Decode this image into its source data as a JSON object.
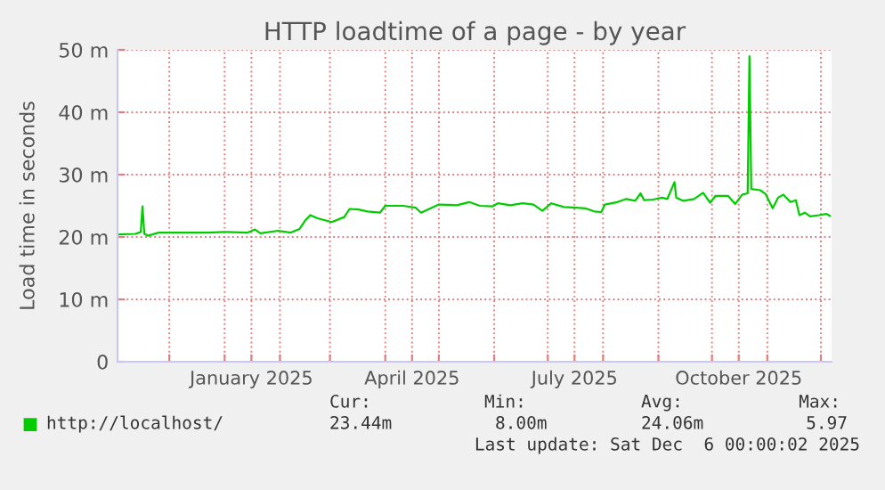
{
  "chart_data": {
    "type": "line",
    "title": "HTTP loadtime of a page - by year",
    "ylabel": "Load time in seconds",
    "x": [
      "2024-11-02",
      "2024-11-12",
      "2024-11-15",
      "2024-11-16",
      "2024-11-17",
      "2024-11-19",
      "2024-11-25",
      "2024-12-05",
      "2024-12-22",
      "2025-01-01",
      "2025-01-14",
      "2025-01-18",
      "2025-01-21",
      "2025-01-31",
      "2025-02-07",
      "2025-02-12",
      "2025-02-15",
      "2025-02-18",
      "2025-02-22",
      "2025-03-02",
      "2025-03-09",
      "2025-03-12",
      "2025-03-17",
      "2025-03-22",
      "2025-03-29",
      "2025-04-01",
      "2025-04-11",
      "2025-04-18",
      "2025-04-21",
      "2025-04-24",
      "2025-05-01",
      "2025-05-11",
      "2025-05-18",
      "2025-05-24",
      "2025-05-31",
      "2025-06-03",
      "2025-06-10",
      "2025-06-17",
      "2025-06-23",
      "2025-06-28",
      "2025-07-03",
      "2025-07-10",
      "2025-07-17",
      "2025-07-22",
      "2025-07-27",
      "2025-07-31",
      "2025-08-02",
      "2025-08-09",
      "2025-08-14",
      "2025-08-19",
      "2025-08-22",
      "2025-08-24",
      "2025-08-29",
      "2025-09-03",
      "2025-09-06",
      "2025-09-10",
      "2025-09-11",
      "2025-09-15",
      "2025-09-21",
      "2025-09-26",
      "2025-09-30",
      "2025-10-03",
      "2025-10-10",
      "2025-10-14",
      "2025-10-18",
      "2025-10-21",
      "2025-10-22",
      "2025-10-23",
      "2025-10-28",
      "2025-10-31",
      "2025-11-04",
      "2025-11-07",
      "2025-11-10",
      "2025-11-14",
      "2025-11-17",
      "2025-11-19",
      "2025-11-22",
      "2025-11-25",
      "2025-11-30",
      "2025-12-04",
      "2025-12-06"
    ],
    "series": [
      {
        "name": "http://localhost/",
        "color": "#00cc00",
        "values": [
          20.4,
          20.5,
          20.8,
          24.9,
          20.5,
          20.2,
          20.7,
          20.7,
          20.7,
          20.8,
          20.7,
          21.2,
          20.6,
          21.0,
          20.7,
          21.3,
          22.6,
          23.5,
          23.0,
          22.4,
          23.2,
          24.5,
          24.4,
          24.1,
          23.9,
          25.0,
          25.0,
          24.7,
          23.9,
          24.3,
          25.2,
          25.1,
          25.6,
          25.0,
          24.9,
          25.4,
          25.1,
          25.4,
          25.2,
          24.2,
          25.4,
          24.8,
          24.7,
          24.6,
          24.1,
          24.0,
          25.2,
          25.6,
          26.1,
          25.8,
          27.0,
          25.9,
          26.0,
          26.3,
          26.1,
          28.8,
          26.3,
          25.8,
          26.1,
          27.1,
          25.5,
          26.6,
          26.6,
          25.3,
          26.8,
          27.0,
          49.0,
          27.7,
          27.5,
          26.9,
          24.6,
          26.3,
          26.8,
          25.6,
          25.9,
          23.5,
          23.9,
          23.3,
          23.5,
          23.7,
          23.4
        ]
      }
    ],
    "xlim": [
      "2024-11-02",
      "2025-12-07"
    ],
    "xticks": [
      {
        "value": "2024-12-01",
        "label": null
      },
      {
        "value": "2025-01-01",
        "label": null
      },
      {
        "value": "2025-01-16",
        "label": "January 2025"
      },
      {
        "value": "2025-02-01",
        "label": null
      },
      {
        "value": "2025-03-01",
        "label": null
      },
      {
        "value": "2025-04-01",
        "label": null
      },
      {
        "value": "2025-04-16",
        "label": "April 2025"
      },
      {
        "value": "2025-05-01",
        "label": null
      },
      {
        "value": "2025-06-01",
        "label": null
      },
      {
        "value": "2025-07-01",
        "label": null
      },
      {
        "value": "2025-07-16",
        "label": "July 2025"
      },
      {
        "value": "2025-08-01",
        "label": null
      },
      {
        "value": "2025-09-01",
        "label": null
      },
      {
        "value": "2025-10-01",
        "label": null
      },
      {
        "value": "2025-10-16",
        "label": "October 2025"
      },
      {
        "value": "2025-11-01",
        "label": null
      },
      {
        "value": "2025-12-01",
        "label": null
      }
    ],
    "ylim": [
      0,
      50
    ],
    "yticks": [
      0,
      {
        "value": 10,
        "label": "10 m"
      },
      {
        "value": 20,
        "label": "20 m"
      },
      {
        "value": 30,
        "label": "30 m"
      },
      {
        "value": 40,
        "label": "40 m"
      },
      {
        "value": 50,
        "label": "50 m"
      }
    ],
    "grid": true,
    "legend": "bottom",
    "marker": "none",
    "line_style": "solid",
    "annotations": [
      "Cur:",
      "23.44m",
      "Min:",
      "8.00m",
      "Avg:",
      "24.06m",
      "Max:",
      "5.97",
      "Last update: Sat Dec  6 00:00:02 2025"
    ]
  }
}
